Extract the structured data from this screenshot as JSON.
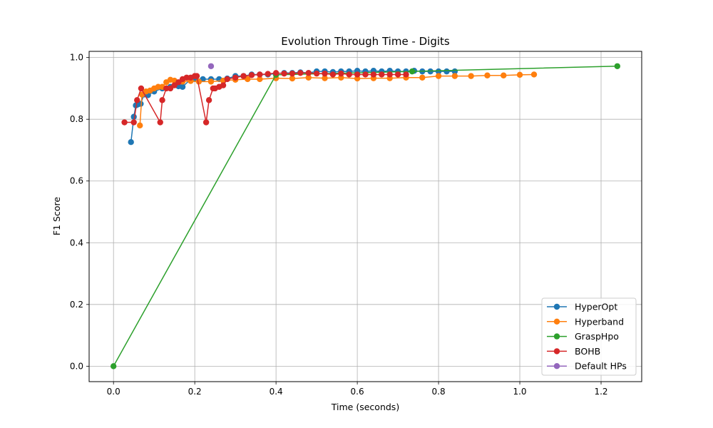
{
  "chart_data": {
    "type": "line",
    "title": "Evolution Through Time - Digits",
    "xlabel": "Time (seconds)",
    "ylabel": "F1 Score",
    "xlim": [
      -0.06,
      1.3
    ],
    "ylim": [
      -0.05,
      1.02
    ],
    "xticks": [
      "0.0",
      "0.2",
      "0.4",
      "0.6",
      "0.8",
      "1.0",
      "1.2"
    ],
    "xtick_values": [
      0.0,
      0.2,
      0.4,
      0.6,
      0.8,
      1.0,
      1.2
    ],
    "yticks": [
      "0.0",
      "0.2",
      "0.4",
      "0.6",
      "0.8",
      "1.0"
    ],
    "ytick_values": [
      0.0,
      0.2,
      0.4,
      0.6,
      0.8,
      1.0
    ],
    "grid": true,
    "legend_position": "lower-right",
    "series": [
      {
        "name": "HyperOpt",
        "color": "#1f77b4",
        "x": [
          0.043,
          0.05,
          0.055,
          0.06,
          0.067,
          0.075,
          0.085,
          0.1,
          0.12,
          0.14,
          0.16,
          0.17,
          0.19,
          0.2,
          0.22,
          0.24,
          0.26,
          0.28,
          0.3,
          0.32,
          0.34,
          0.36,
          0.38,
          0.4,
          0.42,
          0.44,
          0.46,
          0.48,
          0.5,
          0.52,
          0.54,
          0.56,
          0.58,
          0.6,
          0.62,
          0.64,
          0.66,
          0.68,
          0.7,
          0.72,
          0.74,
          0.76,
          0.78,
          0.8,
          0.82,
          0.84
        ],
        "y": [
          0.726,
          0.808,
          0.845,
          0.848,
          0.85,
          0.88,
          0.878,
          0.89,
          0.9,
          0.905,
          0.907,
          0.905,
          0.93,
          0.93,
          0.93,
          0.93,
          0.93,
          0.932,
          0.94,
          0.94,
          0.945,
          0.945,
          0.945,
          0.948,
          0.95,
          0.95,
          0.952,
          0.95,
          0.955,
          0.955,
          0.953,
          0.955,
          0.955,
          0.957,
          0.955,
          0.957,
          0.955,
          0.957,
          0.955,
          0.955,
          0.957,
          0.955,
          0.955,
          0.955,
          0.955,
          0.955
        ]
      },
      {
        "name": "Hyperband",
        "color": "#ff7f0e",
        "x": [
          0.065,
          0.07,
          0.08,
          0.09,
          0.1,
          0.11,
          0.12,
          0.13,
          0.14,
          0.15,
          0.17,
          0.19,
          0.21,
          0.24,
          0.27,
          0.3,
          0.33,
          0.36,
          0.4,
          0.44,
          0.48,
          0.52,
          0.56,
          0.6,
          0.64,
          0.68,
          0.72,
          0.76,
          0.8,
          0.84,
          0.88,
          0.92,
          0.96,
          1.0,
          1.035
        ],
        "y": [
          0.78,
          0.88,
          0.89,
          0.893,
          0.9,
          0.905,
          0.905,
          0.92,
          0.928,
          0.925,
          0.922,
          0.924,
          0.922,
          0.922,
          0.925,
          0.928,
          0.93,
          0.93,
          0.933,
          0.932,
          0.935,
          0.933,
          0.935,
          0.932,
          0.933,
          0.933,
          0.935,
          0.935,
          0.94,
          0.94,
          0.94,
          0.942,
          0.942,
          0.944,
          0.945
        ]
      },
      {
        "name": "GraspHpo",
        "color": "#2ca02c",
        "x": [
          0.0,
          0.4,
          0.735,
          1.24
        ],
        "y": [
          0.0,
          0.944,
          0.955,
          0.972
        ]
      },
      {
        "name": "BOHB",
        "color": "#d62728",
        "x": [
          0.027,
          0.05,
          0.058,
          0.068,
          0.115,
          0.12,
          0.13,
          0.14,
          0.15,
          0.16,
          0.17,
          0.18,
          0.19,
          0.2,
          0.205,
          0.228,
          0.235,
          0.245,
          0.25,
          0.26,
          0.27,
          0.28,
          0.3,
          0.32,
          0.34,
          0.36,
          0.38,
          0.4,
          0.42,
          0.44,
          0.46,
          0.48,
          0.5,
          0.52,
          0.54,
          0.56,
          0.58,
          0.6,
          0.62,
          0.64,
          0.66,
          0.68,
          0.7,
          0.72
        ],
        "y": [
          0.79,
          0.79,
          0.862,
          0.9,
          0.79,
          0.862,
          0.9,
          0.9,
          0.91,
          0.92,
          0.93,
          0.935,
          0.935,
          0.94,
          0.94,
          0.79,
          0.862,
          0.9,
          0.9,
          0.905,
          0.91,
          0.93,
          0.935,
          0.94,
          0.943,
          0.945,
          0.947,
          0.95,
          0.948,
          0.948,
          0.95,
          0.95,
          0.948,
          0.948,
          0.945,
          0.948,
          0.945,
          0.945,
          0.945,
          0.945,
          0.945,
          0.945,
          0.945,
          0.945
        ]
      },
      {
        "name": "Default HPs",
        "color": "#9467bd",
        "x": [
          0.24
        ],
        "y": [
          0.972
        ]
      }
    ]
  }
}
